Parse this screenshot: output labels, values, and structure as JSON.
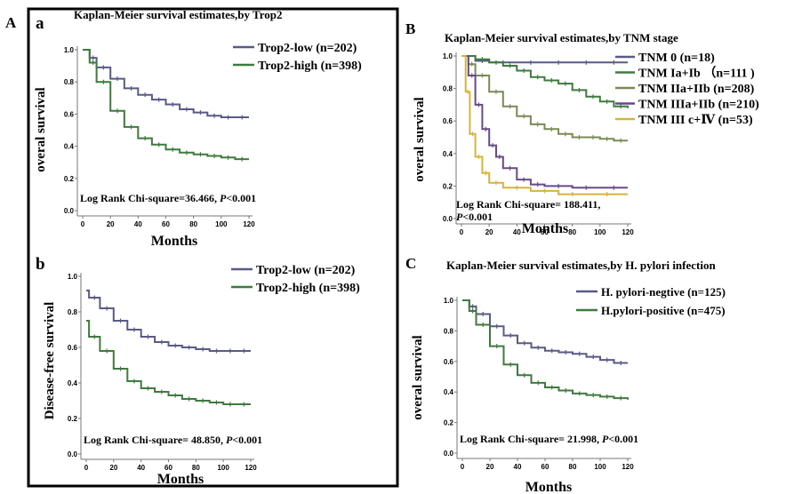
{
  "panel_labels": {
    "A": "A",
    "a": "a",
    "b": "b",
    "B": "B",
    "C": "C"
  },
  "colors": {
    "low": "#5a5a86",
    "high": "#3f7a3f",
    "tnm0": "#5a5a86",
    "tnm1": "#3f7a3f",
    "tnm2": "#7a8a55",
    "tnm3": "#6a4a86",
    "tnm4": "#d6b43c"
  },
  "chart_data": [
    {
      "id": "a",
      "type": "line",
      "title": "Kaplan-Meier survival estimates,by Trop2",
      "xlabel": "Months",
      "ylabel": "overal survival",
      "xlim": [
        0,
        120
      ],
      "ylim": [
        0,
        1.0
      ],
      "xticks": [
        "0",
        "20",
        "40",
        "60",
        "80",
        "100",
        "120"
      ],
      "yticks": [
        "0.0",
        "0.2",
        "0.4",
        "0.6",
        "0.8",
        "1.0"
      ],
      "annotation": "Log Rank Chi-square=36.466, ",
      "annotation_p": "P",
      "annotation_tail": "<0.001",
      "legend_position": "top-right",
      "series": [
        {
          "name": "Trop2-low (n=202)",
          "key": "low",
          "x": [
            0,
            5,
            10,
            20,
            30,
            40,
            50,
            60,
            70,
            80,
            90,
            100,
            110,
            120
          ],
          "y": [
            1.0,
            0.95,
            0.89,
            0.82,
            0.76,
            0.72,
            0.69,
            0.66,
            0.63,
            0.61,
            0.59,
            0.58,
            0.58,
            0.58
          ]
        },
        {
          "name": "Trop2-high (n=398)",
          "key": "high",
          "x": [
            0,
            5,
            10,
            20,
            30,
            40,
            50,
            60,
            70,
            80,
            90,
            100,
            110,
            120
          ],
          "y": [
            1.0,
            0.92,
            0.8,
            0.62,
            0.52,
            0.45,
            0.41,
            0.38,
            0.36,
            0.35,
            0.34,
            0.33,
            0.32,
            0.32
          ]
        }
      ]
    },
    {
      "id": "b",
      "type": "line",
      "title": "",
      "xlabel": "Months",
      "ylabel": "Disease-free survival",
      "xlim": [
        0,
        120
      ],
      "ylim": [
        0,
        1.0
      ],
      "xticks": [
        "0",
        "20",
        "40",
        "60",
        "80",
        "100",
        "120"
      ],
      "yticks": [
        "0.0",
        "0.2",
        "0.4",
        "0.6",
        "0.8",
        "1.0"
      ],
      "annotation": "Log Rank Chi-square= 48.850, ",
      "annotation_p": "P",
      "annotation_tail": "<0.001",
      "legend_position": "top-right",
      "series": [
        {
          "name": "Trop2-low (n=202)",
          "key": "low",
          "x": [
            0,
            2,
            10,
            20,
            30,
            40,
            50,
            60,
            70,
            80,
            90,
            100,
            110,
            120
          ],
          "y": [
            0.92,
            0.88,
            0.82,
            0.75,
            0.7,
            0.66,
            0.63,
            0.61,
            0.6,
            0.59,
            0.58,
            0.58,
            0.58,
            0.58
          ]
        },
        {
          "name": "Trop2-high (n=398)",
          "key": "high",
          "x": [
            0,
            2,
            10,
            20,
            30,
            40,
            50,
            60,
            70,
            80,
            90,
            100,
            110,
            120
          ],
          "y": [
            0.75,
            0.66,
            0.58,
            0.48,
            0.41,
            0.37,
            0.35,
            0.33,
            0.31,
            0.3,
            0.29,
            0.28,
            0.28,
            0.28
          ]
        }
      ]
    },
    {
      "id": "B",
      "type": "line",
      "title": "Kaplan-Meier survival estimates,by TNM stage",
      "xlabel": "Months",
      "ylabel": "overal survival",
      "xlim": [
        0,
        120
      ],
      "ylim": [
        0,
        1.0
      ],
      "xticks": [
        "0",
        "20",
        "40",
        "60",
        "80",
        "100",
        "120"
      ],
      "yticks": [
        "0.0",
        "0.2",
        "0.4",
        "0.6",
        "0.8",
        "1.0"
      ],
      "annotation": "Log Rank Chi-square= 188.411,",
      "annotation_p": "P",
      "annotation_tail": "<0.001",
      "legend_position": "right",
      "series": [
        {
          "name": "TNM 0 (n=18)",
          "key": "tnm0",
          "x": [
            0,
            10,
            20,
            40,
            60,
            80,
            100,
            120
          ],
          "y": [
            1.0,
            0.97,
            0.96,
            0.96,
            0.96,
            0.96,
            0.96,
            0.96
          ]
        },
        {
          "name": "TNM Ia+Ib （n=111 )",
          "key": "tnm1",
          "x": [
            0,
            10,
            20,
            30,
            40,
            50,
            60,
            70,
            80,
            90,
            100,
            110,
            120
          ],
          "y": [
            1.0,
            0.98,
            0.96,
            0.94,
            0.91,
            0.87,
            0.85,
            0.83,
            0.79,
            0.75,
            0.72,
            0.69,
            0.68
          ]
        },
        {
          "name": "TNM IIa+IIb (n=208)",
          "key": "tnm2",
          "x": [
            0,
            5,
            10,
            20,
            30,
            40,
            50,
            60,
            70,
            80,
            90,
            100,
            110,
            120
          ],
          "y": [
            1.0,
            0.95,
            0.88,
            0.78,
            0.69,
            0.63,
            0.58,
            0.55,
            0.52,
            0.5,
            0.5,
            0.49,
            0.48,
            0.48
          ]
        },
        {
          "name": "TNM IIIa+IIb (n=210)",
          "key": "tnm3",
          "x": [
            0,
            5,
            10,
            15,
            20,
            25,
            30,
            40,
            50,
            60,
            80,
            100,
            120
          ],
          "y": [
            1.0,
            0.88,
            0.7,
            0.55,
            0.45,
            0.38,
            0.31,
            0.24,
            0.21,
            0.2,
            0.19,
            0.19,
            0.19
          ]
        },
        {
          "name": "TNM III c+Ⅳ (n=53)",
          "key": "tnm4",
          "x": [
            0,
            3,
            6,
            10,
            15,
            20,
            30,
            50,
            70,
            90,
            120
          ],
          "y": [
            1.0,
            0.78,
            0.52,
            0.38,
            0.28,
            0.22,
            0.19,
            0.17,
            0.15,
            0.15,
            0.15
          ]
        }
      ]
    },
    {
      "id": "C",
      "type": "line",
      "title": "Kaplan-Meier survival estimates,by H. pylori infection",
      "xlabel": "Months",
      "ylabel": "overal survival",
      "xlim": [
        0,
        120
      ],
      "ylim": [
        0,
        1.0
      ],
      "xticks": [
        "0",
        "20",
        "40",
        "60",
        "80",
        "100",
        "120"
      ],
      "yticks": [
        "0.0",
        "0.2",
        "0.4",
        "0.6",
        "0.8",
        "1.0"
      ],
      "annotation": "Log Rank Chi-square= 21.998, ",
      "annotation_p": "P",
      "annotation_tail": "<0.001",
      "legend_position": "top-right",
      "series": [
        {
          "name": "H. pylori-negtive (n=125)",
          "key": "low",
          "x": [
            0,
            5,
            10,
            20,
            30,
            40,
            50,
            60,
            70,
            80,
            90,
            100,
            110,
            120
          ],
          "y": [
            1.0,
            0.96,
            0.91,
            0.83,
            0.77,
            0.72,
            0.69,
            0.67,
            0.66,
            0.65,
            0.63,
            0.61,
            0.59,
            0.59
          ]
        },
        {
          "name": "H.pylori-positive (n=475)",
          "key": "high",
          "x": [
            0,
            5,
            10,
            20,
            30,
            40,
            50,
            60,
            70,
            80,
            90,
            100,
            110,
            120
          ],
          "y": [
            1.0,
            0.93,
            0.84,
            0.7,
            0.58,
            0.51,
            0.46,
            0.43,
            0.41,
            0.39,
            0.38,
            0.37,
            0.36,
            0.35
          ]
        }
      ]
    }
  ]
}
